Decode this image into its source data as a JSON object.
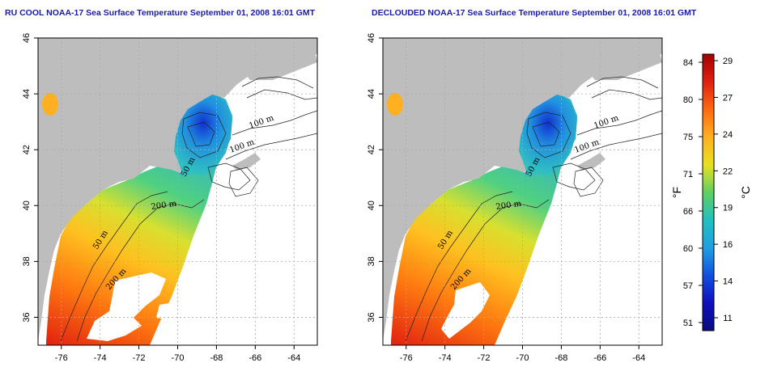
{
  "panels": [
    {
      "title": "RU COOL NOAA-17 Sea Surface Temperature September 01, 2008 16:01 GMT",
      "contour_labels": [
        "100 m",
        "100 m",
        "50 m",
        "200 m",
        "50 m",
        "200 m"
      ]
    },
    {
      "title": "DECLOUDED NOAA-17 Sea Surface Temperature September 01, 2008 16:01 GMT",
      "contour_labels": [
        "100 m",
        "100 m",
        "50 m",
        "200 m",
        "50 m",
        "200 m"
      ]
    }
  ],
  "axes": {
    "x_ticks": [
      "-76",
      "-74",
      "-72",
      "-70",
      "-68",
      "-66",
      "-64"
    ],
    "y_ticks": [
      "36",
      "38",
      "40",
      "42",
      "44",
      "46"
    ],
    "x_range": [
      -77.2,
      -62.8
    ],
    "y_range": [
      35,
      46
    ]
  },
  "colorbar": {
    "f_label": "°F",
    "c_label": "°C",
    "f_ticks": [
      "84",
      "80",
      "75",
      "71",
      "66",
      "60",
      "57",
      "51"
    ],
    "c_ticks": [
      "29",
      "27",
      "24",
      "22",
      "19",
      "16",
      "14",
      "11"
    ],
    "colors_top_to_bottom": [
      "#a00000",
      "#e02010",
      "#ff6a10",
      "#ffb020",
      "#e8e020",
      "#60d060",
      "#20c0c0",
      "#20a0e0",
      "#1050e0",
      "#1010c0",
      "#0a0a80"
    ]
  },
  "colors": {
    "land": "#bdbdbd",
    "ocean_nodata": "#ffffff",
    "grid": "#aaaaaa",
    "title": "#1a1aa6"
  }
}
